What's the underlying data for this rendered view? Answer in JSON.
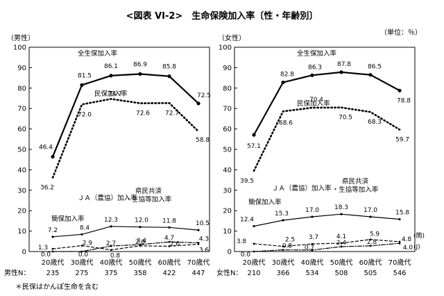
{
  "title": "<図表 VI-2>　生命保険加入率〔性・年齢別〕",
  "unit": "（単位：％）",
  "note": "＊民保はかんぽ生命を含む",
  "chart_data": [
    {
      "type": "line",
      "panel_label": "（男性）",
      "categories": [
        "20歳代",
        "30歳代",
        "40歳代",
        "50歳代",
        "60歳代",
        "70歳代"
      ],
      "n_label": "男性N：",
      "n_values": [
        "235",
        "275",
        "375",
        "358",
        "422",
        "447"
      ],
      "ylim": [
        0,
        100
      ],
      "yticks": [
        0,
        10,
        20,
        30,
        40,
        50,
        60,
        70,
        80,
        90,
        100
      ],
      "series": [
        {
          "name": "全生保加入率",
          "style": "solid",
          "values": [
            46.4,
            81.5,
            86.1,
            86.9,
            85.8,
            72.5
          ],
          "labels": [
            "46.4",
            "81.5",
            "86.1",
            "86.9",
            "85.8",
            "72.5"
          ]
        },
        {
          "name": "民保加入率",
          "style": "dotted",
          "values": [
            36.2,
            72.0,
            74.7,
            72.6,
            72.7,
            58.8
          ],
          "labels": [
            "36.2",
            "72.0",
            "74.7",
            "72.6",
            "72.7",
            "58.8"
          ]
        },
        {
          "name": "ＪＡ（農協）加入率",
          "style": "dashdot",
          "values": [
            0.0,
            0.0,
            2.7,
            3.4,
            4.7,
            4.3
          ],
          "labels": [
            "0.0",
            "0.0",
            "2.7",
            "3.4",
            "4.7",
            "4.3"
          ]
        },
        {
          "name": "簡保加入率",
          "style": "dashed",
          "values": [
            1.3,
            2.9,
            0.8,
            2.8,
            2.6,
            3.6
          ],
          "labels": [
            "1.3",
            "2.9",
            "0.8",
            "2.8",
            "2.6",
            "3.6"
          ]
        },
        {
          "name": "県民共済・生協等加入率",
          "style": "solid-thin",
          "values": [
            7.2,
            8.4,
            12.3,
            12.0,
            11.8,
            10.5
          ],
          "labels": [
            "7.2",
            "8.4",
            "12.3",
            "12.0",
            "11.8",
            "10.5"
          ]
        }
      ]
    },
    {
      "type": "line",
      "panel_label": "（女性）",
      "categories": [
        "20歳代",
        "30歳代",
        "40歳代",
        "50歳代",
        "60歳代",
        "70歳代"
      ],
      "n_label": "女性N：",
      "n_values": [
        "210",
        "366",
        "534",
        "508",
        "505",
        "546"
      ],
      "ylim": [
        0,
        100
      ],
      "yticks": [
        0,
        10,
        20,
        30,
        40,
        50,
        60,
        70,
        80,
        90,
        100
      ],
      "series": [
        {
          "name": "全生保加入率",
          "style": "solid",
          "values": [
            57.1,
            82.8,
            86.3,
            87.8,
            86.5,
            78.8
          ],
          "labels": [
            "57.1",
            "82.8",
            "86.3",
            "87.8",
            "86.5",
            "78.8"
          ]
        },
        {
          "name": "民保加入率",
          "style": "dotted",
          "values": [
            39.5,
            68.6,
            70.4,
            70.5,
            68.3,
            59.7
          ],
          "labels": [
            "39.5",
            "68.6",
            "70.4",
            "70.5",
            "68.3",
            "59.7"
          ]
        },
        {
          "name": "ＪＡ（農協）加入率",
          "style": "dashdot",
          "values": [
            0.0,
            0.8,
            0.7,
            2.4,
            2.8,
            4.0
          ],
          "labels": [
            "0.0",
            "0.8",
            "0.7",
            "2.4",
            "2.8",
            "4.0"
          ]
        },
        {
          "name": "簡保加入率",
          "style": "dashed",
          "values": [
            3.8,
            2.5,
            3.7,
            4.1,
            5.9,
            4.8
          ],
          "labels": [
            "3.8",
            "2.5",
            "3.7",
            "4.1",
            "5.9",
            "4.8"
          ]
        },
        {
          "name": "県民共済・生協等加入率",
          "style": "solid-thin",
          "values": [
            12.4,
            15.3,
            17.0,
            18.3,
            17.0,
            15.8
          ],
          "labels": [
            "12.4",
            "15.3",
            "17.0",
            "18.3",
            "17.0",
            "15.8"
          ]
        }
      ],
      "end_tags": {
        "簡保加入率": "(簡)",
        "ＪＡ（農協）加入率": "(J)"
      }
    }
  ]
}
